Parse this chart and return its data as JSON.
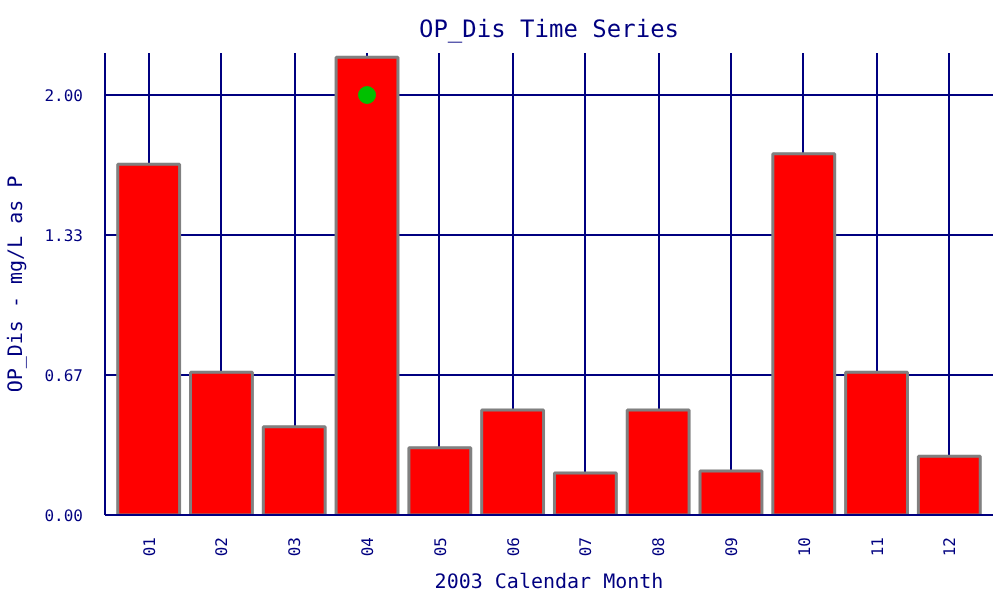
{
  "chart_data": {
    "type": "bar",
    "title": "OP_Dis Time Series",
    "xlabel": "2003 Calendar Month",
    "ylabel": "OP_Dis - mg/L as P",
    "categories": [
      "01",
      "02",
      "03",
      "04",
      "05",
      "06",
      "07",
      "08",
      "09",
      "10",
      "11",
      "12"
    ],
    "series": [
      {
        "color": "#ff0000",
        "values": [
          1.67,
          0.68,
          0.42,
          2.18,
          0.32,
          0.5,
          0.2,
          0.5,
          0.21,
          1.72,
          0.68,
          0.28
        ]
      },
      {
        "type": "scatter",
        "color": "#00c000",
        "x": [
          "04"
        ],
        "values": [
          2.0
        ]
      }
    ],
    "ylim": [
      0,
      2.2
    ],
    "yticks": [
      {
        "value": 0,
        "label": "0.00"
      },
      {
        "value": 0.667,
        "label": "0.67"
      },
      {
        "value": 1.333,
        "label": "1.33"
      },
      {
        "value": 2.0,
        "label": "2.00"
      }
    ],
    "grid": true,
    "marker": "circle"
  }
}
